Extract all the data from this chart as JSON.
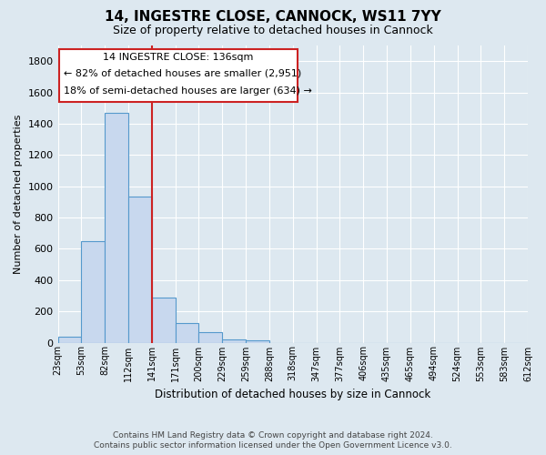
{
  "title": "14, INGESTRE CLOSE, CANNOCK, WS11 7YY",
  "subtitle": "Size of property relative to detached houses in Cannock",
  "xlabel": "Distribution of detached houses by size in Cannock",
  "ylabel": "Number of detached properties",
  "footer_line1": "Contains HM Land Registry data © Crown copyright and database right 2024.",
  "footer_line2": "Contains public sector information licensed under the Open Government Licence v3.0.",
  "bin_labels": [
    "23sqm",
    "53sqm",
    "82sqm",
    "112sqm",
    "141sqm",
    "171sqm",
    "200sqm",
    "229sqm",
    "259sqm",
    "288sqm",
    "318sqm",
    "347sqm",
    "377sqm",
    "406sqm",
    "435sqm",
    "465sqm",
    "494sqm",
    "524sqm",
    "553sqm",
    "583sqm",
    "612sqm"
  ],
  "bar_values": [
    35,
    650,
    1470,
    935,
    290,
    125,
    65,
    22,
    15,
    0,
    0,
    0,
    0,
    0,
    0,
    0,
    0,
    0,
    0,
    0
  ],
  "bar_color": "#c8d8ee",
  "bar_edge_color": "#5599cc",
  "ylim": [
    0,
    1900
  ],
  "yticks": [
    0,
    200,
    400,
    600,
    800,
    1000,
    1200,
    1400,
    1600,
    1800
  ],
  "red_line_x": 4,
  "red_line_color": "#cc2222",
  "annotation_text_line1": "14 INGESTRE CLOSE: 136sqm",
  "annotation_text_line2": "← 82% of detached houses are smaller (2,951)",
  "annotation_text_line3": "18% of semi-detached houses are larger (634) →",
  "annotation_box_color": "#cc2222",
  "background_color": "#dde8f0",
  "grid_color": "#c8d4e0",
  "num_bins": 20,
  "bin_width": 1.0
}
